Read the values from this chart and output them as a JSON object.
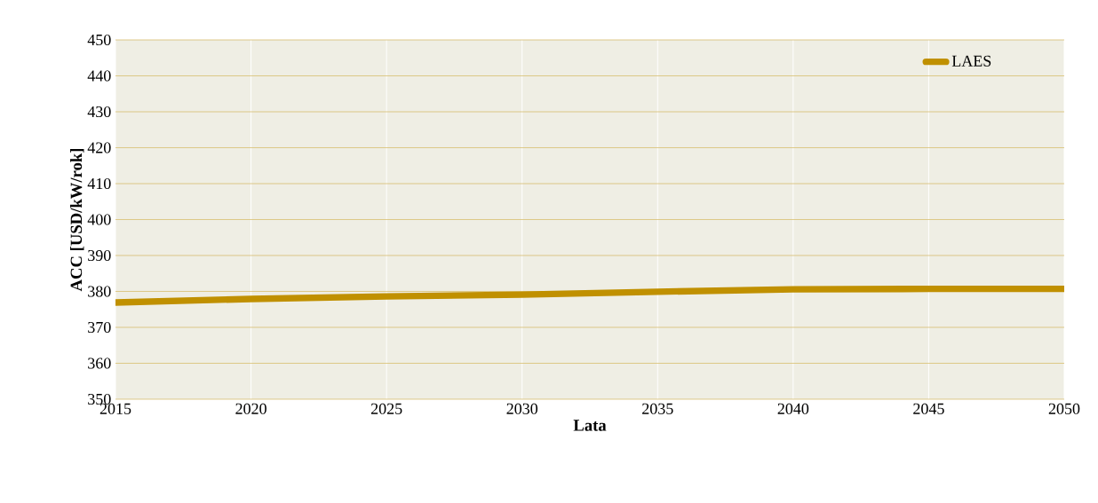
{
  "chart_data": {
    "type": "line",
    "xlabel": "Lata",
    "ylabel": "ACC [USD/kW/rok]",
    "x": [
      2015,
      2020,
      2025,
      2030,
      2035,
      2040,
      2045,
      2050
    ],
    "series": [
      {
        "name": "LAES",
        "color": "#c09000",
        "values": [
          376.9,
          377.9,
          378.6,
          379.1,
          379.9,
          380.6,
          380.7,
          380.7
        ]
      }
    ],
    "xlim": [
      2015,
      2050
    ],
    "xticks": [
      2015,
      2020,
      2025,
      2030,
      2035,
      2040,
      2045,
      2050
    ],
    "ylim": [
      350,
      450
    ],
    "yticks": [
      350,
      360,
      370,
      380,
      390,
      400,
      410,
      420,
      430,
      440,
      450
    ],
    "grid": true,
    "legend": "top right",
    "marker": "none",
    "line_style": "solid"
  }
}
